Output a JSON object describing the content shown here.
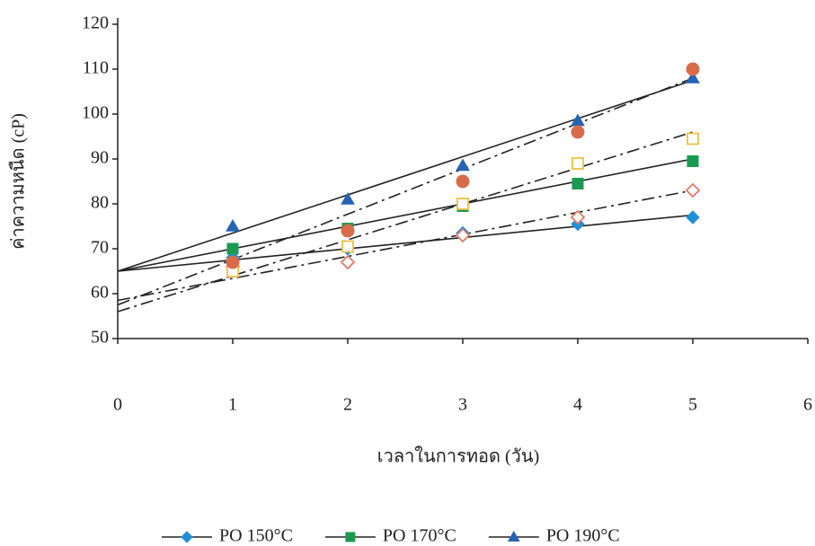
{
  "chart_data": {
    "type": "scatter",
    "x_label": "เวลาในการทอด (วัน)",
    "y_label": "ค่าความหนืด (cP)",
    "x": [
      1,
      2,
      3,
      4,
      5
    ],
    "xlim": [
      0,
      6
    ],
    "xticks": [
      0,
      1,
      2,
      3,
      4,
      5,
      6
    ],
    "ylim": [
      50,
      120
    ],
    "yticks": [
      50,
      60,
      70,
      80,
      90,
      100,
      110,
      120
    ],
    "series": [
      {
        "name": "PO 150°C",
        "marker": "diamond",
        "filled": true,
        "color": "#1f8fd6",
        "line": "solid",
        "values": [
          68,
          70,
          73.5,
          75.5,
          77
        ],
        "trend": [
          65,
          77.5
        ]
      },
      {
        "name": "PO 170°C",
        "marker": "square",
        "filled": true,
        "color": "#1a9a50",
        "line": "solid",
        "values": [
          70,
          74.5,
          79.5,
          84.5,
          89.5
        ],
        "trend": [
          65,
          90
        ]
      },
      {
        "name": "PO 190°C",
        "marker": "triangle",
        "filled": true,
        "color": "#2563b3",
        "line": "solid",
        "values": [
          75,
          81,
          88.5,
          98.5,
          108
        ],
        "trend": [
          65,
          107.5
        ]
      },
      {
        "marker": "diamond",
        "filled": false,
        "color": "#e07a68",
        "line": "dashdot",
        "values": [
          66,
          67,
          73,
          77,
          83
        ],
        "trend": [
          58.5,
          83
        ]
      },
      {
        "marker": "square",
        "filled": false,
        "color": "#f0c040",
        "line": "dashdot",
        "values": [
          65,
          70.5,
          80,
          89,
          94.5
        ],
        "trend": [
          56,
          96
        ]
      },
      {
        "marker": "circle",
        "filled": true,
        "color": "#d86c4a",
        "line": "dashdot",
        "values": [
          67,
          74,
          85,
          96,
          110
        ],
        "trend": [
          57.5,
          108
        ]
      }
    ]
  }
}
